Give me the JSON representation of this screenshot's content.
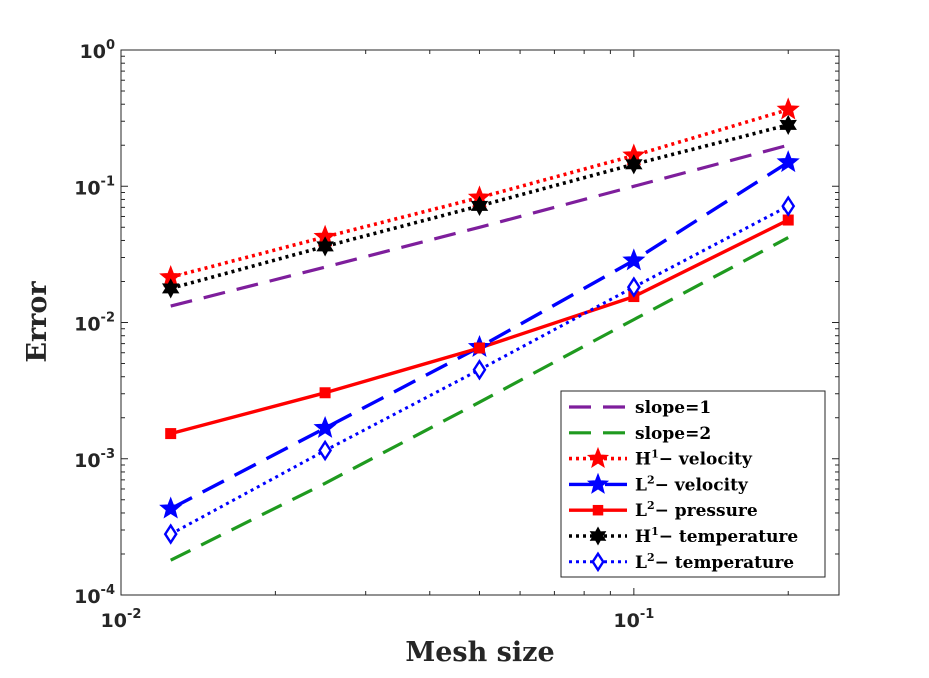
{
  "chart_data": {
    "type": "line",
    "xscale": "log",
    "yscale": "log",
    "xlabel": "Mesh size",
    "ylabel": "Error",
    "xlim": [
      0.01,
      0.2512
    ],
    "ylim": [
      0.0001,
      1
    ],
    "legend_position": "bottom-right",
    "x_ticks": [
      {
        "value": 0.01,
        "base": "10",
        "exp": "-2"
      },
      {
        "value": 0.1,
        "base": "10",
        "exp": "-1"
      }
    ],
    "y_ticks": [
      {
        "value": 1,
        "base": "10",
        "exp": "0"
      },
      {
        "value": 0.1,
        "base": "10",
        "exp": "-1"
      },
      {
        "value": 0.01,
        "base": "10",
        "exp": "-2"
      },
      {
        "value": 0.001,
        "base": "10",
        "exp": "-3"
      },
      {
        "value": 0.0001,
        "base": "10",
        "exp": "-4"
      }
    ],
    "series": [
      {
        "name": "slope=1",
        "legend_prefix": "",
        "legend_sup": "",
        "legend_text": "slope=1",
        "color": "#7E1E9C",
        "dash": "22,12",
        "width": 3.2,
        "marker": "none",
        "x": [
          0.0125,
          0.025,
          0.05,
          0.1,
          0.2
        ],
        "y": [
          0.0132,
          0.0255,
          0.05,
          0.1,
          0.2
        ]
      },
      {
        "name": "slope=2",
        "legend_prefix": "",
        "legend_sup": "",
        "legend_text": "slope=2",
        "color": "#1F9A1F",
        "dash": "22,12",
        "width": 3.2,
        "marker": "none",
        "x": [
          0.0125,
          0.025,
          0.05,
          0.1,
          0.2
        ],
        "y": [
          0.00018,
          0.00066,
          0.0026,
          0.0105,
          0.042
        ]
      },
      {
        "name": "H1- velocity",
        "legend_prefix": "H",
        "legend_sup": "1",
        "legend_text": "− velocity",
        "color": "#FF0000",
        "dash": "3,4",
        "width": 3.6,
        "marker": "star",
        "x": [
          0.0125,
          0.025,
          0.05,
          0.1,
          0.2
        ],
        "y": [
          0.0215,
          0.0425,
          0.0825,
          0.168,
          0.365
        ]
      },
      {
        "name": "L2- velocity",
        "legend_prefix": "L",
        "legend_sup": "2",
        "legend_text": "− velocity",
        "color": "#0000FF",
        "dash": "24,12",
        "width": 3.4,
        "marker": "star",
        "x": [
          0.0125,
          0.025,
          0.05,
          0.1,
          0.2
        ],
        "y": [
          0.00043,
          0.00168,
          0.0066,
          0.0285,
          0.15
        ]
      },
      {
        "name": "L2- pressure",
        "legend_prefix": "L",
        "legend_sup": "2",
        "legend_text": "− pressure",
        "color": "#FF0000",
        "dash": "",
        "width": 3.4,
        "marker": "square",
        "x": [
          0.0125,
          0.025,
          0.05,
          0.1,
          0.2
        ],
        "y": [
          0.00153,
          0.00305,
          0.0065,
          0.0155,
          0.0565
        ]
      },
      {
        "name": "H1- temperature",
        "legend_prefix": "H",
        "legend_sup": "1",
        "legend_text": "− temperature",
        "color": "#000000",
        "dash": "3,4",
        "width": 3.6,
        "marker": "hexstar",
        "x": [
          0.0125,
          0.025,
          0.05,
          0.1,
          0.2
        ],
        "y": [
          0.0178,
          0.0362,
          0.0718,
          0.145,
          0.282
        ]
      },
      {
        "name": "L2- temperature",
        "legend_prefix": "L",
        "legend_sup": "2",
        "legend_text": "− temperature",
        "color": "#0000FF",
        "dash": "3,4",
        "width": 3.0,
        "marker": "diamond",
        "x": [
          0.0125,
          0.025,
          0.05,
          0.1,
          0.2
        ],
        "y": [
          0.00028,
          0.00115,
          0.0045,
          0.0182,
          0.0715
        ]
      }
    ]
  }
}
